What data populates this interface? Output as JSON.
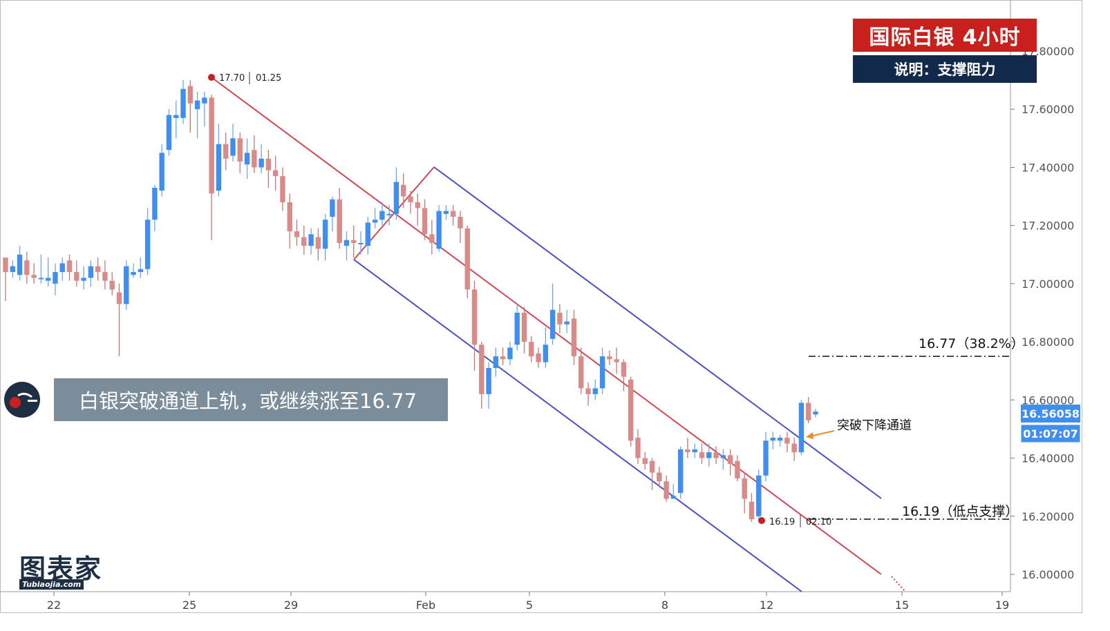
{
  "header": {
    "title": "国际白银  4小时",
    "subtitle": "说明：支撑阻力"
  },
  "banner": {
    "text": "白银突破通道上轨，或继续涨至16.77"
  },
  "logo": {
    "main": "图表家",
    "sub": "Tubiaojia.com"
  },
  "colors": {
    "up": "#3f8ef0",
    "down": "#d98b89",
    "channel_red": "#d0474f",
    "channel_blue": "#4a4fc4",
    "arrow": "#f08a30",
    "price_tag": "#3f8ef0"
  },
  "chart_data": {
    "type": "candlestick",
    "instrument": "国际白银",
    "timeframe": "4小时",
    "x_tick_labels": [
      "22",
      "25",
      "29",
      "Feb",
      "5",
      "8",
      "12",
      "15",
      "19"
    ],
    "y_tick_labels": [
      "17.80000",
      "17.60000",
      "17.40000",
      "17.20000",
      "17.00000",
      "16.80000",
      "16.60000",
      "16.40000",
      "16.20000",
      "16.00000"
    ],
    "ylim": [
      15.94,
      17.98
    ],
    "current_price": "16.56058",
    "countdown": "01:07:07",
    "candles": [
      [
        17.09,
        17.04,
        17.04,
        16.94
      ],
      [
        17.04,
        17.06,
        17.08,
        17.02
      ],
      [
        17.03,
        17.1,
        17.13,
        17.01
      ],
      [
        17.08,
        17.03,
        17.11,
        17.0
      ],
      [
        17.03,
        17.02,
        17.07,
        17.0
      ],
      [
        17.02,
        17.02,
        17.1,
        17.0
      ],
      [
        17.01,
        17.02,
        17.09,
        16.99
      ],
      [
        17.0,
        17.04,
        17.07,
        16.96
      ],
      [
        17.04,
        17.07,
        17.09,
        17.01
      ],
      [
        17.08,
        17.04,
        17.1,
        17.01
      ],
      [
        17.04,
        17.01,
        17.08,
        16.99
      ],
      [
        17.01,
        17.02,
        17.06,
        16.98
      ],
      [
        17.02,
        17.06,
        17.08,
        16.99
      ],
      [
        17.06,
        17.04,
        17.09,
        17.01
      ],
      [
        17.04,
        17.01,
        17.08,
        16.98
      ],
      [
        17.01,
        16.98,
        17.04,
        16.96
      ],
      [
        16.97,
        16.93,
        17.0,
        16.75
      ],
      [
        16.93,
        17.06,
        17.08,
        16.91
      ],
      [
        17.03,
        17.04,
        17.07,
        17.02
      ],
      [
        17.04,
        17.05,
        17.09,
        17.02
      ],
      [
        17.05,
        17.22,
        17.26,
        17.03
      ],
      [
        17.22,
        17.33,
        17.34,
        17.18
      ],
      [
        17.32,
        17.45,
        17.48,
        17.3
      ],
      [
        17.46,
        17.58,
        17.6,
        17.44
      ],
      [
        17.57,
        17.58,
        17.63,
        17.5
      ],
      [
        17.57,
        17.67,
        17.7,
        17.55
      ],
      [
        17.68,
        17.62,
        17.7,
        17.52
      ],
      [
        17.6,
        17.63,
        17.66,
        17.5
      ],
      [
        17.62,
        17.64,
        17.66,
        17.54
      ],
      [
        17.64,
        17.31,
        17.65,
        17.15
      ],
      [
        17.32,
        17.48,
        17.55,
        17.3
      ],
      [
        17.48,
        17.43,
        17.52,
        17.39
      ],
      [
        17.44,
        17.5,
        17.55,
        17.42
      ],
      [
        17.5,
        17.42,
        17.52,
        17.38
      ],
      [
        17.41,
        17.45,
        17.5,
        17.36
      ],
      [
        17.46,
        17.4,
        17.51,
        17.38
      ],
      [
        17.4,
        17.43,
        17.48,
        17.38
      ],
      [
        17.43,
        17.39,
        17.46,
        17.33
      ],
      [
        17.39,
        17.37,
        17.44,
        17.32
      ],
      [
        17.37,
        17.28,
        17.4,
        17.25
      ],
      [
        17.28,
        17.18,
        17.31,
        17.12
      ],
      [
        17.18,
        17.16,
        17.22,
        17.13
      ],
      [
        17.16,
        17.13,
        17.2,
        17.1
      ],
      [
        17.13,
        17.17,
        17.19,
        17.1
      ],
      [
        17.16,
        17.12,
        17.19,
        17.08
      ],
      [
        17.12,
        17.22,
        17.24,
        17.08
      ],
      [
        17.23,
        17.29,
        17.3,
        17.18
      ],
      [
        17.29,
        17.14,
        17.33,
        17.12
      ],
      [
        17.13,
        17.15,
        17.18,
        17.08
      ],
      [
        17.15,
        17.14,
        17.2,
        17.09
      ],
      [
        17.14,
        17.14,
        17.18,
        17.1
      ],
      [
        17.13,
        17.21,
        17.23,
        17.1
      ],
      [
        17.21,
        17.22,
        17.26,
        17.19
      ],
      [
        17.22,
        17.25,
        17.28,
        17.2
      ],
      [
        17.24,
        17.24,
        17.27,
        17.2
      ],
      [
        17.24,
        17.35,
        17.4,
        17.22
      ],
      [
        17.34,
        17.3,
        17.38,
        17.26
      ],
      [
        17.3,
        17.28,
        17.32,
        17.24
      ],
      [
        17.28,
        17.26,
        17.31,
        17.2
      ],
      [
        17.26,
        17.17,
        17.29,
        17.15
      ],
      [
        17.17,
        17.14,
        17.22,
        17.1
      ],
      [
        17.12,
        17.25,
        17.27,
        17.11
      ],
      [
        17.24,
        17.25,
        17.27,
        17.22
      ],
      [
        17.25,
        17.23,
        17.27,
        17.2
      ],
      [
        17.23,
        17.19,
        17.25,
        17.14
      ],
      [
        17.19,
        16.98,
        17.2,
        16.95
      ],
      [
        16.98,
        16.79,
        17.01,
        16.7
      ],
      [
        16.79,
        16.62,
        16.8,
        16.57
      ],
      [
        16.62,
        16.71,
        16.73,
        16.57
      ],
      [
        16.71,
        16.75,
        16.78,
        16.68
      ],
      [
        16.75,
        16.74,
        16.78,
        16.72
      ],
      [
        16.74,
        16.78,
        16.8,
        16.72
      ],
      [
        16.79,
        16.9,
        16.93,
        16.77
      ],
      [
        16.9,
        16.8,
        16.92,
        16.76
      ],
      [
        16.8,
        16.75,
        16.82,
        16.73
      ],
      [
        16.76,
        16.73,
        16.78,
        16.71
      ],
      [
        16.73,
        16.79,
        16.85,
        16.71
      ],
      [
        16.81,
        16.91,
        17.0,
        16.79
      ],
      [
        16.9,
        16.86,
        16.93,
        16.83
      ],
      [
        16.86,
        16.87,
        16.91,
        16.83
      ],
      [
        16.88,
        16.75,
        16.91,
        16.72
      ],
      [
        16.75,
        16.64,
        16.78,
        16.62
      ],
      [
        16.64,
        16.62,
        16.66,
        16.58
      ],
      [
        16.62,
        16.64,
        16.67,
        16.6
      ],
      [
        16.64,
        16.75,
        16.78,
        16.62
      ],
      [
        16.75,
        16.74,
        16.77,
        16.72
      ],
      [
        16.74,
        16.73,
        16.78,
        16.69
      ],
      [
        16.73,
        16.68,
        16.74,
        16.63
      ],
      [
        16.67,
        16.46,
        16.68,
        16.44
      ],
      [
        16.47,
        16.4,
        16.5,
        16.38
      ],
      [
        16.4,
        16.38,
        16.42,
        16.36
      ],
      [
        16.39,
        16.35,
        16.4,
        16.29
      ],
      [
        16.35,
        16.32,
        16.37,
        16.3
      ],
      [
        16.32,
        16.26,
        16.34,
        16.25
      ],
      [
        16.26,
        16.27,
        16.31,
        16.26
      ],
      [
        16.28,
        16.43,
        16.44,
        16.26
      ],
      [
        16.43,
        16.42,
        16.47,
        16.4
      ],
      [
        16.42,
        16.43,
        16.45,
        16.4
      ],
      [
        16.42,
        16.4,
        16.45,
        16.38
      ],
      [
        16.4,
        16.42,
        16.45,
        16.37
      ],
      [
        16.42,
        16.4,
        16.44,
        16.38
      ],
      [
        16.4,
        16.41,
        16.43,
        16.36
      ],
      [
        16.41,
        16.38,
        16.43,
        16.34
      ],
      [
        16.39,
        16.33,
        16.41,
        16.32
      ],
      [
        16.33,
        16.26,
        16.35,
        16.21
      ],
      [
        16.25,
        16.19,
        16.28,
        16.18
      ],
      [
        16.2,
        16.34,
        16.36,
        16.19
      ],
      [
        16.34,
        16.46,
        16.49,
        16.32
      ],
      [
        16.46,
        16.47,
        16.49,
        16.43
      ],
      [
        16.46,
        16.47,
        16.48,
        16.44
      ],
      [
        16.47,
        16.45,
        16.49,
        16.42
      ],
      [
        16.45,
        16.42,
        16.47,
        16.39
      ],
      [
        16.42,
        16.59,
        16.6,
        16.41
      ],
      [
        16.59,
        16.53,
        16.61,
        16.52
      ],
      [
        16.55,
        16.56,
        16.57,
        16.54
      ]
    ],
    "channel": {
      "red_line": [
        [
          17.7,
          "01.25"
        ],
        [
          16.0,
          "02.15"
        ]
      ],
      "blue_upper_start": 17.4,
      "blue_lower_start": 17.08
    },
    "annotations": {
      "high_marker": {
        "price": "17.70",
        "date": "01.25"
      },
      "low_marker": {
        "price": "16.19",
        "date": "02.10"
      },
      "resistance_label": "16.77（38.2%）",
      "support_label": "16.19（低点支撑）",
      "breakout_label": "突破下降通道"
    }
  }
}
